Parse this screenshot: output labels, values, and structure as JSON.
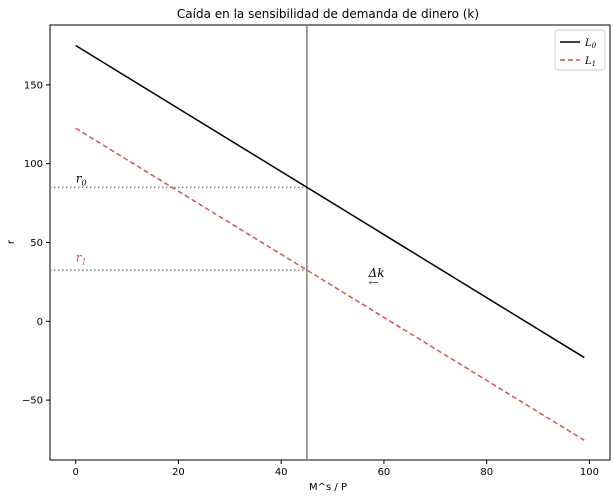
{
  "chart_data": {
    "type": "line",
    "title": "Caída en la sensibilidad de demanda de dinero (k)",
    "xlabel": "M^s / P",
    "ylabel": "r",
    "xlim": [
      -5,
      104
    ],
    "ylim": [
      -88,
      188
    ],
    "xticks": [
      0,
      20,
      40,
      60,
      80,
      100
    ],
    "yticks": [
      -50,
      0,
      50,
      100,
      150
    ],
    "grid": false,
    "legend_position": "top-right",
    "series": [
      {
        "name": "L0",
        "label_main": "L",
        "label_sub": "0",
        "color": "#000000",
        "dash": "solid",
        "x": [
          0,
          99
        ],
        "y": [
          175,
          -23
        ]
      },
      {
        "name": "L1",
        "label_main": "L",
        "label_sub": "1",
        "color": "#d9534f",
        "dash": "dashed",
        "x": [
          0,
          99
        ],
        "y": [
          122.5,
          -75.5
        ]
      }
    ],
    "vertical_line": {
      "x": 45,
      "color": "#808080"
    },
    "horizontal_guides": [
      {
        "y": 85,
        "x_end": 45,
        "color": "#808080"
      },
      {
        "y": 32.5,
        "x_end": 45,
        "color": "#808080"
      }
    ],
    "annotations": [
      {
        "main": "r",
        "sub": "0",
        "x": 0,
        "y": 88,
        "color": "#000000"
      },
      {
        "main": "r",
        "sub": "1",
        "x": 0,
        "y": 38,
        "color": "#d9534f"
      },
      {
        "main": "Δk",
        "sub": "",
        "x": 57,
        "y": 28,
        "color": "#000000"
      },
      {
        "main": "←",
        "sub": "",
        "x": 57,
        "y": 22,
        "color": "#555555"
      }
    ]
  }
}
